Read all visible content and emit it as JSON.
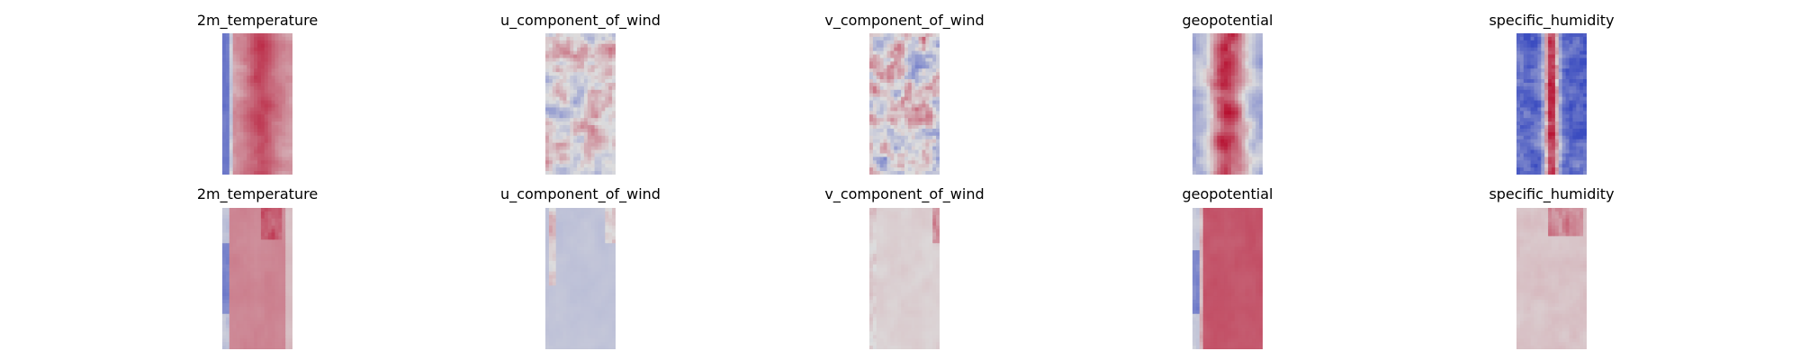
{
  "chart_data": {
    "type": "heatmap",
    "colormap": "coolwarm",
    "axes": "off",
    "grid": false,
    "rows": [
      {
        "panels": [
          {
            "title": "2m_temperature",
            "pattern": "temp_field"
          },
          {
            "title": "u_component_of_wind",
            "pattern": "wind_field"
          },
          {
            "title": "v_component_of_wind",
            "pattern": "wind_field_strong"
          },
          {
            "title": "geopotential",
            "pattern": "geo_field"
          },
          {
            "title": "specific_humidity",
            "pattern": "humidity_field"
          }
        ]
      },
      {
        "panels": [
          {
            "title": "2m_temperature",
            "pattern": "temp_error"
          },
          {
            "title": "u_component_of_wind",
            "pattern": "u_error"
          },
          {
            "title": "v_component_of_wind",
            "pattern": "v_error"
          },
          {
            "title": "geopotential",
            "pattern": "geo_error"
          },
          {
            "title": "specific_humidity",
            "pattern": "humidity_error"
          }
        ]
      }
    ],
    "colors": {
      "blue": "#3b4cc0",
      "neutral": "#dddddd",
      "red": "#b40426"
    }
  }
}
